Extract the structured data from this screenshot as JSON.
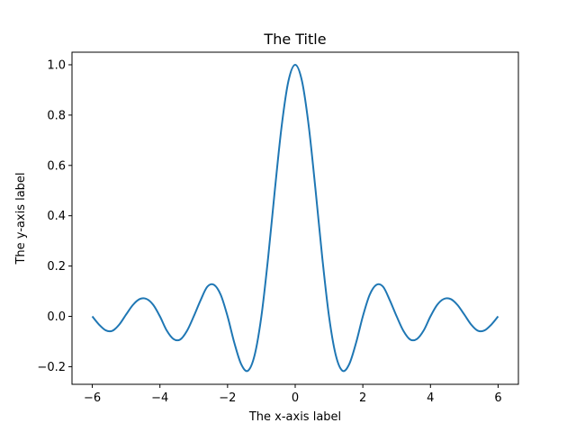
{
  "chart_data": {
    "type": "line",
    "title": "The Title",
    "xlabel": "The x-axis label",
    "ylabel": "The y-axis label",
    "xlim": [
      -6.6,
      6.6
    ],
    "ylim": [
      -0.27,
      1.05
    ],
    "grid": false,
    "x_ticks": [
      -6,
      -4,
      -2,
      0,
      2,
      4,
      6
    ],
    "x_tick_labels": [
      "−6",
      "−4",
      "−2",
      "0",
      "2",
      "4",
      "6"
    ],
    "y_ticks": [
      -0.2,
      0.0,
      0.2,
      0.4,
      0.6,
      0.8,
      1.0
    ],
    "y_tick_labels": [
      "−0.2",
      "0.0",
      "0.2",
      "0.4",
      "0.6",
      "0.8",
      "1.0"
    ],
    "series": [
      {
        "color": "#1f77b4",
        "x": [
          -6.0,
          -5.8,
          -5.6,
          -5.4,
          -5.2,
          -5.0,
          -4.8,
          -4.6,
          -4.4,
          -4.2,
          -4.0,
          -3.8,
          -3.6,
          -3.4,
          -3.2,
          -3.0,
          -2.8,
          -2.6,
          -2.4,
          -2.2,
          -2.0,
          -1.8,
          -1.6,
          -1.4,
          -1.2,
          -1.0,
          -0.8,
          -0.6,
          -0.4,
          -0.2,
          0.0,
          0.2,
          0.4,
          0.6,
          0.8,
          1.0,
          1.2,
          1.4,
          1.6,
          1.8,
          2.0,
          2.2,
          2.4,
          2.6,
          2.8,
          3.0,
          3.2,
          3.4,
          3.6,
          3.8,
          4.0,
          4.2,
          4.4,
          4.6,
          4.8,
          5.0,
          5.2,
          5.4,
          5.6,
          5.8,
          6.0
        ],
        "y": [
          0.0,
          -0.0327,
          -0.0557,
          -0.0569,
          -0.032,
          0.0074,
          0.0453,
          0.0688,
          0.0694,
          0.0461,
          0.0,
          -0.0559,
          -0.0899,
          -0.092,
          -0.0576,
          0.0,
          0.0634,
          0.1176,
          0.1253,
          0.0851,
          0.0,
          -0.105,
          -0.1892,
          -0.2163,
          -0.1542,
          0.0,
          0.234,
          0.5045,
          0.7568,
          0.9355,
          1.0,
          0.9355,
          0.7568,
          0.5045,
          0.234,
          0.0,
          -0.1542,
          -0.2163,
          -0.1892,
          -0.105,
          0.0,
          0.0851,
          0.1253,
          0.1176,
          0.0634,
          0.0,
          -0.0576,
          -0.092,
          -0.0899,
          -0.0559,
          0.0,
          0.0461,
          0.0694,
          0.0688,
          0.0453,
          0.0074,
          -0.032,
          -0.0569,
          -0.0557,
          -0.0327,
          0.0
        ]
      }
    ]
  }
}
